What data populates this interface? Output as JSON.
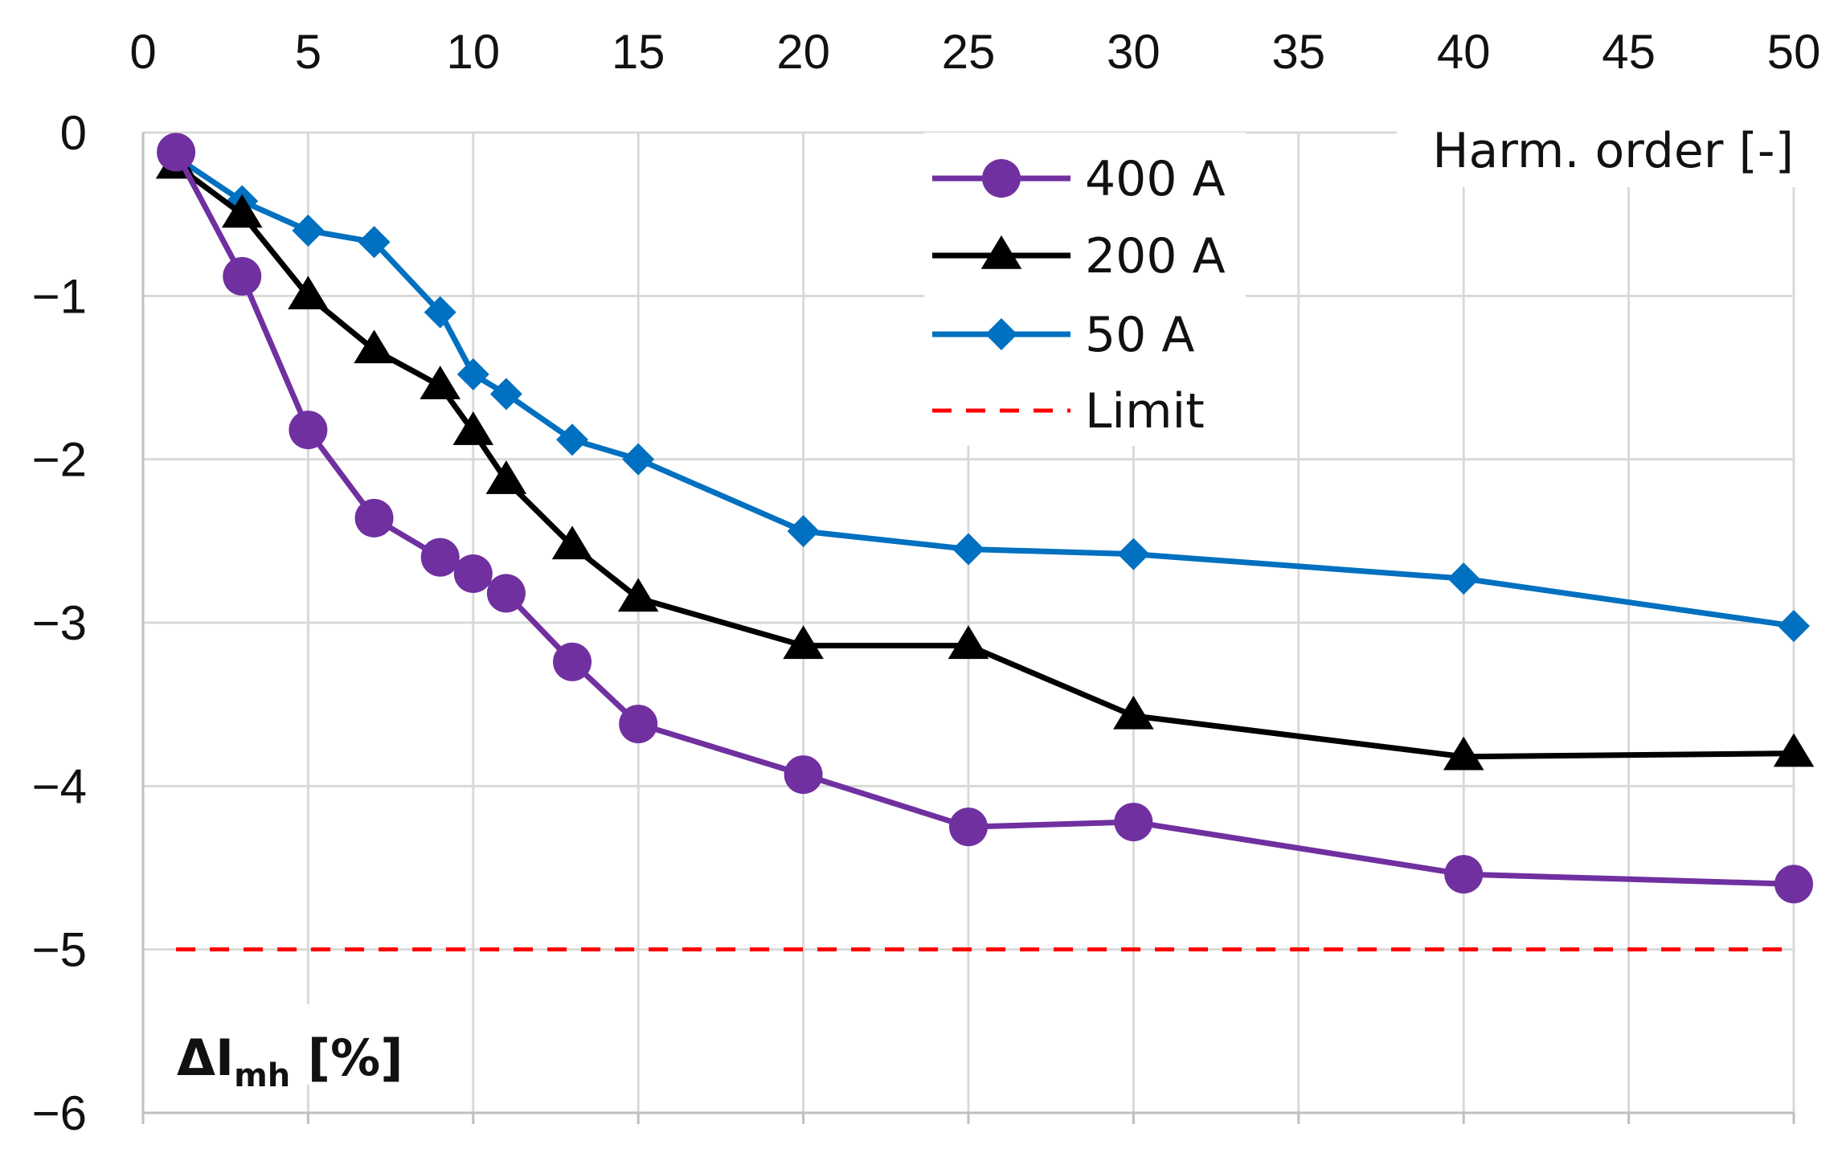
{
  "chart_data": {
    "type": "line",
    "title": "",
    "xlabel": "Harm. order [-]",
    "ylabel": {
      "main": "ΔI",
      "sub": "mh",
      "unit": " [%]"
    },
    "x_ticks": [
      0,
      5,
      10,
      15,
      20,
      25,
      30,
      35,
      40,
      45,
      50
    ],
    "x_tick_labels": [
      "0",
      "5",
      "10",
      "15",
      "20",
      "25",
      "30",
      "35",
      "40",
      "45",
      "50"
    ],
    "y_ticks": [
      0,
      -1,
      -2,
      -3,
      -4,
      -5,
      -6
    ],
    "y_tick_labels": [
      "0",
      "−1",
      "−2",
      "−3",
      "−4",
      "−5",
      "−6"
    ],
    "xlim": [
      0,
      50
    ],
    "ylim": [
      -6,
      0
    ],
    "grid": true,
    "legend_position": "top-right",
    "series": [
      {
        "name": "400 A",
        "color": "#7030A0",
        "marker": "circle",
        "x": [
          1,
          3,
          5,
          7,
          9,
          10,
          11,
          13,
          15,
          20,
          25,
          30,
          40,
          50
        ],
        "values": [
          -0.12,
          -0.88,
          -1.82,
          -2.36,
          -2.6,
          -2.7,
          -2.82,
          -3.24,
          -3.62,
          -3.93,
          -4.25,
          -4.22,
          -4.54,
          -4.6
        ]
      },
      {
        "name": "200 A",
        "color": "#000000",
        "marker": "triangle",
        "x": [
          1,
          3,
          5,
          7,
          9,
          10,
          11,
          13,
          15,
          20,
          25,
          30,
          40,
          50
        ],
        "values": [
          -0.2,
          -0.5,
          -1.0,
          -1.33,
          -1.55,
          -1.83,
          -2.13,
          -2.53,
          -2.85,
          -3.14,
          -3.14,
          -3.57,
          -3.82,
          -3.8
        ]
      },
      {
        "name": "50 A",
        "color": "#0070C0",
        "marker": "diamond",
        "x": [
          1,
          3,
          5,
          7,
          9,
          10,
          11,
          13,
          15,
          20,
          25,
          30,
          40,
          50
        ],
        "values": [
          -0.15,
          -0.42,
          -0.6,
          -0.67,
          -1.1,
          -1.48,
          -1.6,
          -1.88,
          -2.0,
          -2.44,
          -2.55,
          -2.58,
          -2.73,
          -3.02
        ]
      },
      {
        "name": "Limit",
        "color": "#FF0000",
        "marker": "none",
        "dashed": true,
        "x": [
          1,
          50
        ],
        "values": [
          -5,
          -5
        ]
      }
    ]
  }
}
